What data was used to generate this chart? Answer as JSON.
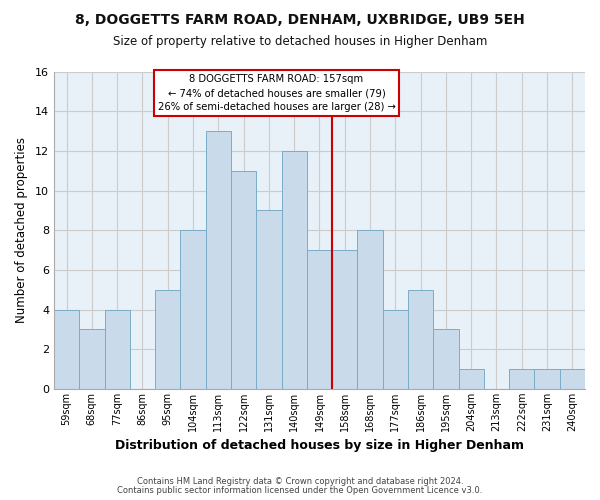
{
  "title": "8, DOGGETTS FARM ROAD, DENHAM, UXBRIDGE, UB9 5EH",
  "subtitle": "Size of property relative to detached houses in Higher Denham",
  "xlabel": "Distribution of detached houses by size in Higher Denham",
  "ylabel": "Number of detached properties",
  "footer_line1": "Contains HM Land Registry data © Crown copyright and database right 2024.",
  "footer_line2": "Contains public sector information licensed under the Open Government Licence v3.0.",
  "bar_labels": [
    "59sqm",
    "68sqm",
    "77sqm",
    "86sqm",
    "95sqm",
    "104sqm",
    "113sqm",
    "122sqm",
    "131sqm",
    "140sqm",
    "149sqm",
    "158sqm",
    "168sqm",
    "177sqm",
    "186sqm",
    "195sqm",
    "204sqm",
    "213sqm",
    "222sqm",
    "231sqm",
    "240sqm"
  ],
  "bar_values": [
    4,
    3,
    4,
    0,
    5,
    8,
    13,
    11,
    9,
    12,
    7,
    7,
    8,
    4,
    5,
    3,
    1,
    0,
    1,
    1,
    1
  ],
  "bar_color": "#c9daea",
  "bar_edge_color": "#7aacc8",
  "reference_line_x_label": "158sqm",
  "reference_line_color": "#cc0000",
  "annotation_title": "8 DOGGETTS FARM ROAD: 157sqm",
  "annotation_line1": "← 74% of detached houses are smaller (79)",
  "annotation_line2": "26% of semi-detached houses are larger (28) →",
  "annotation_box_facecolor": "#ffffff",
  "annotation_border_color": "#cc0000",
  "ylim": [
    0,
    16
  ],
  "yticks": [
    0,
    2,
    4,
    6,
    8,
    10,
    12,
    14,
    16
  ],
  "grid_color": "#cccccc",
  "bg_color": "#ffffff",
  "plot_bg_color": "#e8f0f8"
}
